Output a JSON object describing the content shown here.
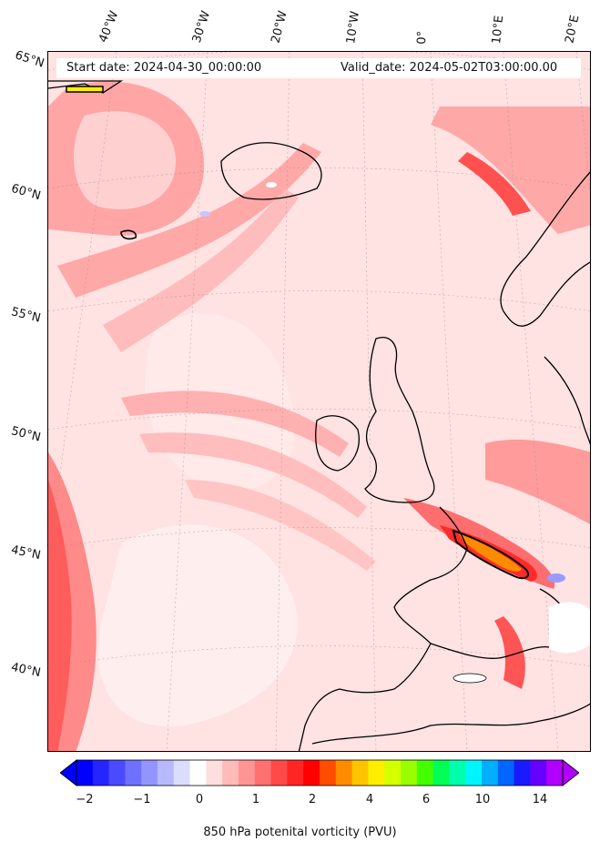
{
  "header": {
    "start_date": "Start date: 2024-04-30_00:00:00",
    "valid_date": "Valid_date: 2024-05-02T03:00:00.00"
  },
  "longitude_labels": [
    "40°W",
    "30°W",
    "20°W",
    "10°W",
    "0°",
    "10°E",
    "20°E"
  ],
  "latitude_labels": [
    "65°N",
    "60°N",
    "55°N",
    "50°N",
    "45°N",
    "40°N"
  ],
  "colorbar": {
    "label": "850 hPa potenital vorticity (PVU)",
    "ticks": [
      "−2",
      "−1",
      "0",
      "1",
      "2",
      "4",
      "6",
      "10",
      "14"
    ],
    "colors": [
      "#0000ff",
      "#2525ff",
      "#4a4aff",
      "#7070ff",
      "#9494ff",
      "#b9b9ff",
      "#dcdcff",
      "#ffffff",
      "#ffdede",
      "#ffbaba",
      "#ff9494",
      "#ff7070",
      "#ff4a4a",
      "#ff2525",
      "#ff0000",
      "#ff4d00",
      "#ff8c00",
      "#ffc400",
      "#ffee00",
      "#d4ff00",
      "#99ff00",
      "#44ff00",
      "#00ff55",
      "#00ffaa",
      "#00f5ff",
      "#00b0ff",
      "#0066ff",
      "#1a1aff",
      "#6600ff",
      "#b000ff"
    ],
    "extend": "both"
  },
  "map": {
    "variable": "850 hPa potential vorticity",
    "projection": "conic",
    "background_level_color": "#ffe0e0",
    "contour_label": "2"
  }
}
